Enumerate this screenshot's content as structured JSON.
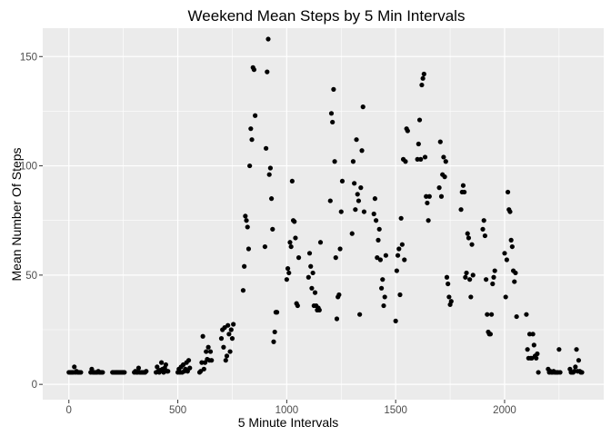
{
  "chart_data": {
    "type": "scatter",
    "title": "Weekend Mean Steps by 5 Min Intervals",
    "xlabel": "5 Minute Intervals",
    "ylabel": "Mean Number Of Steps",
    "xlim": [
      -120,
      2455
    ],
    "ylim": [
      -7,
      163
    ],
    "x_ticks": [
      0,
      500,
      1000,
      1500,
      2000
    ],
    "x_tick_labels": [
      "0",
      "500",
      "1000",
      "1500",
      "2000"
    ],
    "y_ticks": [
      0,
      50,
      100,
      150
    ],
    "y_tick_labels": [
      "0",
      "50",
      "100",
      "150"
    ],
    "grid": true,
    "legend": "none",
    "colors": {
      "panel": "#ebebeb",
      "grid": "#ffffff",
      "point": "#000000",
      "tick_text": "#4d4d4d",
      "tick_mark": "#333333"
    },
    "points": [
      [
        0,
        5.5
      ],
      [
        5,
        5.5
      ],
      [
        10,
        5.5
      ],
      [
        15,
        5.5
      ],
      [
        20,
        5.5
      ],
      [
        25,
        8
      ],
      [
        30,
        5.5
      ],
      [
        35,
        6
      ],
      [
        40,
        5.5
      ],
      [
        45,
        5.5
      ],
      [
        50,
        5.5
      ],
      [
        55,
        5.5
      ],
      [
        100,
        5.5
      ],
      [
        105,
        7
      ],
      [
        110,
        5.5
      ],
      [
        115,
        5.5
      ],
      [
        120,
        5.5
      ],
      [
        125,
        5.5
      ],
      [
        130,
        5.5
      ],
      [
        135,
        6
      ],
      [
        140,
        5.5
      ],
      [
        145,
        5.5
      ],
      [
        150,
        5.5
      ],
      [
        155,
        5.5
      ],
      [
        200,
        5.5
      ],
      [
        205,
        5.5
      ],
      [
        210,
        5.5
      ],
      [
        215,
        5.5
      ],
      [
        220,
        5.5
      ],
      [
        225,
        5.5
      ],
      [
        230,
        5.5
      ],
      [
        235,
        5.5
      ],
      [
        240,
        5.5
      ],
      [
        245,
        5.5
      ],
      [
        250,
        5.5
      ],
      [
        255,
        5.5
      ],
      [
        300,
        5.5
      ],
      [
        305,
        6
      ],
      [
        310,
        5.5
      ],
      [
        315,
        5.5
      ],
      [
        320,
        7.5
      ],
      [
        325,
        5.5
      ],
      [
        330,
        5.5
      ],
      [
        335,
        5.5
      ],
      [
        340,
        5.5
      ],
      [
        345,
        5.5
      ],
      [
        350,
        5.5
      ],
      [
        355,
        6
      ],
      [
        400,
        5.5
      ],
      [
        405,
        8
      ],
      [
        410,
        6
      ],
      [
        415,
        5.5
      ],
      [
        420,
        6.5
      ],
      [
        425,
        10
      ],
      [
        430,
        7
      ],
      [
        435,
        5.5
      ],
      [
        440,
        7.5
      ],
      [
        445,
        9
      ],
      [
        450,
        6
      ],
      [
        455,
        6
      ],
      [
        500,
        5.5
      ],
      [
        505,
        7
      ],
      [
        510,
        5.5
      ],
      [
        515,
        8
      ],
      [
        520,
        5.5
      ],
      [
        525,
        9
      ],
      [
        530,
        6
      ],
      [
        535,
        7
      ],
      [
        540,
        10
      ],
      [
        545,
        6
      ],
      [
        550,
        11
      ],
      [
        555,
        7.5
      ],
      [
        600,
        5.5
      ],
      [
        605,
        6
      ],
      [
        610,
        10
      ],
      [
        615,
        22
      ],
      [
        620,
        7
      ],
      [
        625,
        10
      ],
      [
        630,
        15
      ],
      [
        635,
        11.5
      ],
      [
        640,
        17
      ],
      [
        645,
        11
      ],
      [
        650,
        15
      ],
      [
        655,
        11
      ],
      [
        700,
        21
      ],
      [
        705,
        25
      ],
      [
        710,
        17
      ],
      [
        715,
        26
      ],
      [
        720,
        11
      ],
      [
        725,
        13
      ],
      [
        730,
        27
      ],
      [
        735,
        23
      ],
      [
        740,
        15
      ],
      [
        745,
        25
      ],
      [
        750,
        21
      ],
      [
        755,
        27.5
      ],
      [
        800,
        43
      ],
      [
        805,
        54
      ],
      [
        810,
        77
      ],
      [
        815,
        75
      ],
      [
        820,
        72
      ],
      [
        825,
        62
      ],
      [
        830,
        100
      ],
      [
        835,
        117
      ],
      [
        840,
        112
      ],
      [
        845,
        145
      ],
      [
        850,
        144
      ],
      [
        855,
        123
      ],
      [
        900,
        63
      ],
      [
        905,
        108
      ],
      [
        910,
        143
      ],
      [
        915,
        158
      ],
      [
        920,
        96
      ],
      [
        925,
        99
      ],
      [
        930,
        85
      ],
      [
        935,
        71
      ],
      [
        940,
        19.5
      ],
      [
        945,
        24
      ],
      [
        950,
        33
      ],
      [
        955,
        33
      ],
      [
        1000,
        48
      ],
      [
        1005,
        53
      ],
      [
        1010,
        51
      ],
      [
        1015,
        65
      ],
      [
        1020,
        63
      ],
      [
        1025,
        93
      ],
      [
        1030,
        75
      ],
      [
        1035,
        74.5
      ],
      [
        1040,
        67
      ],
      [
        1045,
        37
      ],
      [
        1050,
        36
      ],
      [
        1055,
        58
      ],
      [
        1100,
        49
      ],
      [
        1105,
        60
      ],
      [
        1110,
        54
      ],
      [
        1115,
        44
      ],
      [
        1120,
        51
      ],
      [
        1125,
        36
      ],
      [
        1130,
        42
      ],
      [
        1135,
        36
      ],
      [
        1140,
        34
      ],
      [
        1145,
        35
      ],
      [
        1150,
        34
      ],
      [
        1155,
        65
      ],
      [
        1200,
        84
      ],
      [
        1205,
        124
      ],
      [
        1210,
        120
      ],
      [
        1215,
        135
      ],
      [
        1220,
        102
      ],
      [
        1225,
        58
      ],
      [
        1230,
        30
      ],
      [
        1235,
        40
      ],
      [
        1240,
        41
      ],
      [
        1245,
        62
      ],
      [
        1250,
        79
      ],
      [
        1255,
        93
      ],
      [
        1300,
        69
      ],
      [
        1305,
        102
      ],
      [
        1310,
        92
      ],
      [
        1315,
        80
      ],
      [
        1320,
        112
      ],
      [
        1325,
        87
      ],
      [
        1330,
        84
      ],
      [
        1335,
        32
      ],
      [
        1340,
        90
      ],
      [
        1345,
        107
      ],
      [
        1350,
        127
      ],
      [
        1355,
        79
      ],
      [
        1400,
        78
      ],
      [
        1405,
        85
      ],
      [
        1410,
        75
      ],
      [
        1415,
        58
      ],
      [
        1420,
        66
      ],
      [
        1425,
        71
      ],
      [
        1430,
        57
      ],
      [
        1435,
        44
      ],
      [
        1440,
        48
      ],
      [
        1445,
        36
      ],
      [
        1450,
        40
      ],
      [
        1455,
        59
      ],
      [
        1500,
        29
      ],
      [
        1505,
        52
      ],
      [
        1510,
        59
      ],
      [
        1515,
        62
      ],
      [
        1520,
        41
      ],
      [
        1525,
        76
      ],
      [
        1530,
        64
      ],
      [
        1535,
        103
      ],
      [
        1540,
        57
      ],
      [
        1545,
        102
      ],
      [
        1550,
        117
      ],
      [
        1555,
        116
      ],
      [
        1600,
        103
      ],
      [
        1605,
        110
      ],
      [
        1610,
        121
      ],
      [
        1615,
        103
      ],
      [
        1620,
        137
      ],
      [
        1625,
        140
      ],
      [
        1630,
        142
      ],
      [
        1635,
        104
      ],
      [
        1640,
        86
      ],
      [
        1645,
        83
      ],
      [
        1650,
        75
      ],
      [
        1655,
        86
      ],
      [
        1700,
        90
      ],
      [
        1705,
        111
      ],
      [
        1710,
        86
      ],
      [
        1715,
        96
      ],
      [
        1720,
        104
      ],
      [
        1725,
        95
      ],
      [
        1730,
        102
      ],
      [
        1735,
        49
      ],
      [
        1740,
        46
      ],
      [
        1745,
        40
      ],
      [
        1750,
        36.5
      ],
      [
        1755,
        38
      ],
      [
        1800,
        80
      ],
      [
        1805,
        88
      ],
      [
        1810,
        91
      ],
      [
        1815,
        88
      ],
      [
        1820,
        49
      ],
      [
        1825,
        51
      ],
      [
        1830,
        69
      ],
      [
        1835,
        67
      ],
      [
        1840,
        48
      ],
      [
        1845,
        40
      ],
      [
        1850,
        64
      ],
      [
        1855,
        50
      ],
      [
        1900,
        71
      ],
      [
        1905,
        75
      ],
      [
        1910,
        68
      ],
      [
        1915,
        48
      ],
      [
        1920,
        32
      ],
      [
        1925,
        24
      ],
      [
        1930,
        23
      ],
      [
        1935,
        23
      ],
      [
        1940,
        32
      ],
      [
        1945,
        46
      ],
      [
        1950,
        49
      ],
      [
        1955,
        52
      ],
      [
        2000,
        60
      ],
      [
        2005,
        40
      ],
      [
        2010,
        57
      ],
      [
        2015,
        88
      ],
      [
        2020,
        80
      ],
      [
        2025,
        79
      ],
      [
        2030,
        66
      ],
      [
        2035,
        63
      ],
      [
        2040,
        52
      ],
      [
        2045,
        47
      ],
      [
        2050,
        51
      ],
      [
        2055,
        31
      ],
      [
        2100,
        32
      ],
      [
        2105,
        16
      ],
      [
        2110,
        12
      ],
      [
        2115,
        23
      ],
      [
        2120,
        12
      ],
      [
        2125,
        12
      ],
      [
        2130,
        23
      ],
      [
        2135,
        18
      ],
      [
        2140,
        13
      ],
      [
        2145,
        12
      ],
      [
        2150,
        14
      ],
      [
        2155,
        5.5
      ],
      [
        2200,
        7
      ],
      [
        2205,
        5.5
      ],
      [
        2210,
        6
      ],
      [
        2215,
        5.5
      ],
      [
        2220,
        5.5
      ],
      [
        2225,
        6
      ],
      [
        2230,
        5.5
      ],
      [
        2235,
        5.5
      ],
      [
        2240,
        5.5
      ],
      [
        2245,
        5.5
      ],
      [
        2250,
        16
      ],
      [
        2255,
        5.5
      ],
      [
        2300,
        7
      ],
      [
        2305,
        5.5
      ],
      [
        2310,
        5.5
      ],
      [
        2315,
        5.5
      ],
      [
        2320,
        6
      ],
      [
        2325,
        8
      ],
      [
        2330,
        16
      ],
      [
        2335,
        6
      ],
      [
        2340,
        11
      ],
      [
        2345,
        6
      ],
      [
        2350,
        5.5
      ],
      [
        2355,
        5.5
      ]
    ]
  }
}
